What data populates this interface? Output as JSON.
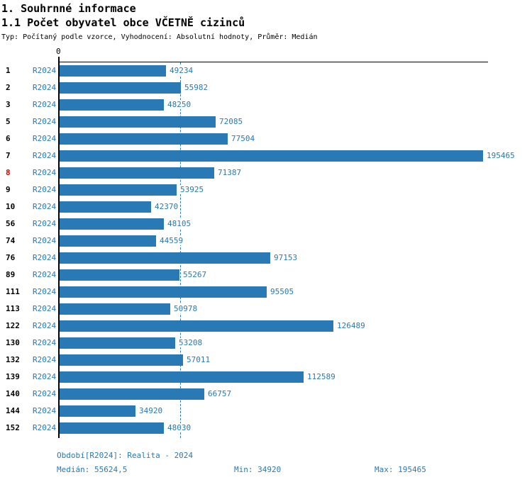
{
  "page": {
    "title": "1. Souhrnné informace",
    "subtitle": "1.1 Počet obyvatel obce VČETNĚ cizinců",
    "meta": "Typ: Počítaný podle vzorce, Vyhodnocení: Absolutní hodnoty, Průměr: Medián"
  },
  "chart_data": {
    "type": "bar",
    "orientation": "horizontal",
    "axis_origin_label": "0",
    "median": 55624.5,
    "highlighted_category": "8",
    "colors": {
      "bar": "#2979b5",
      "label_text": "#2979b5",
      "row_number": "#000000",
      "highlight": "#e00000",
      "axis": "#000000"
    },
    "rows": [
      {
        "id": "1",
        "period": "R2024",
        "value": 49234,
        "highlighted": false
      },
      {
        "id": "2",
        "period": "R2024",
        "value": 55982,
        "highlighted": false
      },
      {
        "id": "3",
        "period": "R2024",
        "value": 48250,
        "highlighted": false
      },
      {
        "id": "5",
        "period": "R2024",
        "value": 72085,
        "highlighted": false
      },
      {
        "id": "6",
        "period": "R2024",
        "value": 77504,
        "highlighted": false
      },
      {
        "id": "7",
        "period": "R2024",
        "value": 195465,
        "highlighted": false
      },
      {
        "id": "8",
        "period": "R2024",
        "value": 71387,
        "highlighted": true
      },
      {
        "id": "9",
        "period": "R2024",
        "value": 53925,
        "highlighted": false
      },
      {
        "id": "10",
        "period": "R2024",
        "value": 42370,
        "highlighted": false
      },
      {
        "id": "56",
        "period": "R2024",
        "value": 48105,
        "highlighted": false
      },
      {
        "id": "74",
        "period": "R2024",
        "value": 44559,
        "highlighted": false
      },
      {
        "id": "76",
        "period": "R2024",
        "value": 97153,
        "highlighted": false
      },
      {
        "id": "89",
        "period": "R2024",
        "value": 55267,
        "highlighted": false
      },
      {
        "id": "111",
        "period": "R2024",
        "value": 95505,
        "highlighted": false
      },
      {
        "id": "113",
        "period": "R2024",
        "value": 50978,
        "highlighted": false
      },
      {
        "id": "122",
        "period": "R2024",
        "value": 126489,
        "highlighted": false
      },
      {
        "id": "130",
        "period": "R2024",
        "value": 53208,
        "highlighted": false
      },
      {
        "id": "132",
        "period": "R2024",
        "value": 57011,
        "highlighted": false
      },
      {
        "id": "139",
        "period": "R2024",
        "value": 112589,
        "highlighted": false
      },
      {
        "id": "140",
        "period": "R2024",
        "value": 66757,
        "highlighted": false
      },
      {
        "id": "144",
        "period": "R2024",
        "value": 34920,
        "highlighted": false
      },
      {
        "id": "152",
        "period": "R2024",
        "value": 48030,
        "highlighted": false
      }
    ]
  },
  "footer": {
    "period_info": "Období[R2024]: Realita - 2024",
    "median_label": "Medián: 55624,5",
    "min_label": "Min: 34920",
    "max_label": "Max: 195465"
  }
}
